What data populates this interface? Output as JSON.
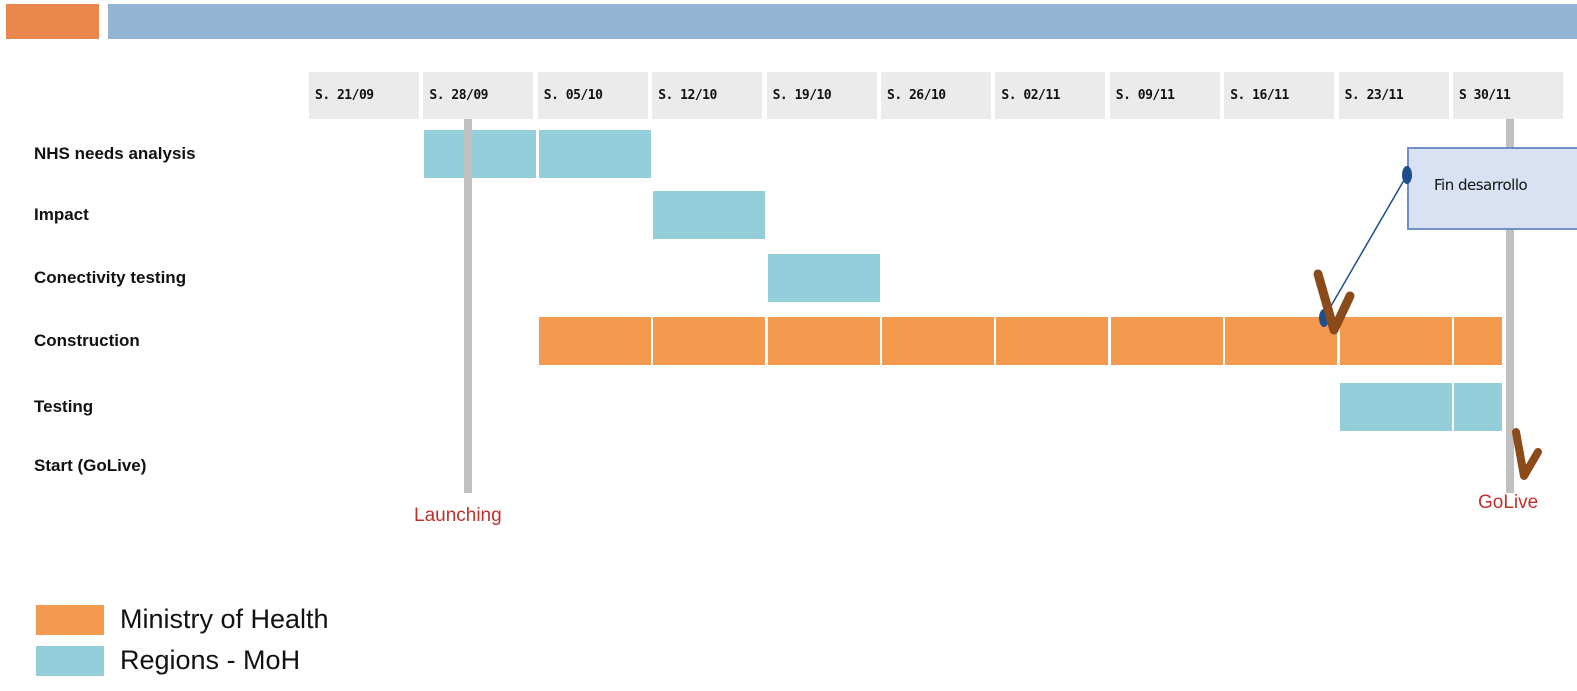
{
  "chart_data": {
    "type": "gantt",
    "weeks": [
      "S. 21/09",
      "S. 28/09",
      "S. 05/10",
      "S. 12/10",
      "S. 19/10",
      "S. 26/10",
      "S. 02/11",
      "S. 09/11",
      "S. 16/11",
      "S. 23/11",
      "S 30/11"
    ],
    "tasks": [
      {
        "label": "NHS needs analysis",
        "start": "S. 28/09",
        "end": "S. 05/10",
        "series": "Regions - MoH"
      },
      {
        "label": "Impact",
        "start": "S. 12/10",
        "end": "S. 12/10",
        "series": "Regions - MoH"
      },
      {
        "label": "Conectivity testing",
        "start": "S. 19/10",
        "end": "S. 19/10",
        "series": "Regions - MoH"
      },
      {
        "label": "Construction",
        "start": "S. 05/10",
        "end": "S 30/11",
        "series": "Ministry of Health"
      },
      {
        "label": "Testing",
        "start": "S. 23/11",
        "end": "S 30/11",
        "series": "Regions - MoH"
      },
      {
        "label": "Start (GoLive)",
        "start": "",
        "end": "",
        "series": ""
      }
    ],
    "milestones": [
      {
        "label": "Launching",
        "week": "S. 28/09"
      },
      {
        "label": "GoLive",
        "week": "S 30/11"
      }
    ],
    "callout": {
      "text": "Fin desarrollo",
      "week": "S. 16/11"
    },
    "legend": [
      {
        "name": "Ministry of Health",
        "color": "#f49a4f"
      },
      {
        "name": "Regions - MoH",
        "color": "#95cedb"
      }
    ]
  },
  "colors": {
    "header_left": "#e8864b",
    "header_right": "#93b4d3",
    "milestone_line": "#c0c0c0",
    "milestone_text": "#c0302a",
    "check_mark": "#8b4a1a"
  }
}
